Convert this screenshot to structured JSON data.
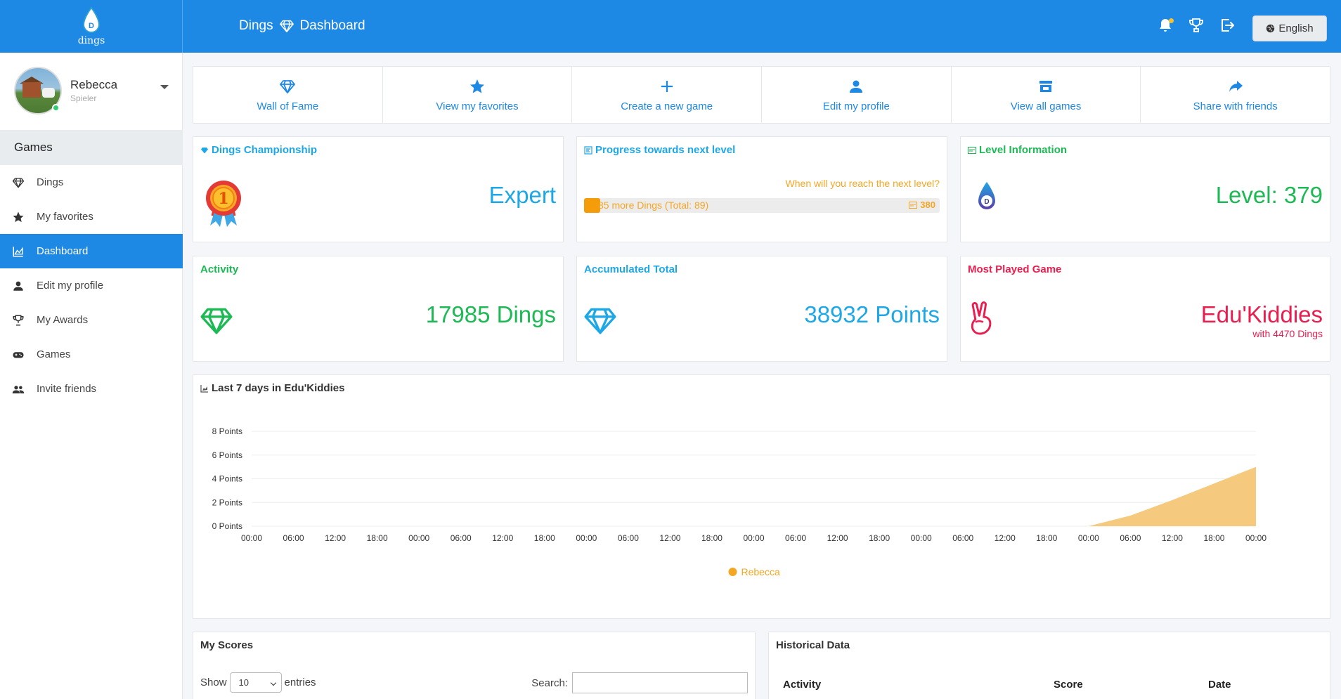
{
  "app": {
    "brand": "dings",
    "brand_letter": "D",
    "breadcrumb": [
      "Dings",
      "Dashboard"
    ],
    "language_label": "English"
  },
  "colors": {
    "primary": "#1e88e5",
    "expert_blue": "#1ea7e6",
    "green": "#1db954",
    "red": "#e91e4f",
    "orange": "#f5a623"
  },
  "user": {
    "name": "Rebecca",
    "role": "Spieler"
  },
  "sidebar": {
    "header": "Games",
    "items": [
      {
        "label": "Dings",
        "icon": "diamond-icon",
        "active": false
      },
      {
        "label": "My favorites",
        "icon": "star-icon",
        "active": false
      },
      {
        "label": "Dashboard",
        "icon": "chart-area-icon",
        "active": true
      },
      {
        "label": "Edit my profile",
        "icon": "user-icon",
        "active": false
      },
      {
        "label": "My Awards",
        "icon": "trophy-icon",
        "active": false
      },
      {
        "label": "Games",
        "icon": "gamepad-icon",
        "active": false
      },
      {
        "label": "Invite friends",
        "icon": "users-icon",
        "active": false
      }
    ]
  },
  "quick_actions": [
    {
      "label": "Wall of Fame",
      "icon": "diamond-icon"
    },
    {
      "label": "View my favorites",
      "icon": "star-icon"
    },
    {
      "label": "Create a new game",
      "icon": "plus-icon"
    },
    {
      "label": "Edit my profile",
      "icon": "user-icon"
    },
    {
      "label": "View all games",
      "icon": "store-icon"
    },
    {
      "label": "Share with friends",
      "icon": "share-icon"
    }
  ],
  "cards": {
    "championship": {
      "title": "Dings Championship",
      "value": "Expert",
      "medal_number": "1"
    },
    "progress": {
      "title": "Progress towards next level",
      "question": "When will you reach the next level?",
      "label": "85 more Dings (Total: 89)",
      "next_level": "380",
      "fraction": 0.045
    },
    "level": {
      "title": "Level Information",
      "value": "Level: 379"
    },
    "activity": {
      "title": "Activity",
      "value": "17985 Dings"
    },
    "accumulated": {
      "title": "Accumulated Total",
      "value": "38932 Points"
    },
    "most_played": {
      "title": "Most Played Game",
      "value": "Edu'Kiddies",
      "subtitle": "with 4470 Dings"
    }
  },
  "chart_data": {
    "type": "area",
    "title": "Last 7 days in Edu'Kiddies",
    "x": [
      "00:00",
      "06:00",
      "12:00",
      "18:00",
      "00:00",
      "06:00",
      "12:00",
      "18:00",
      "00:00",
      "06:00",
      "12:00",
      "18:00",
      "00:00",
      "06:00",
      "12:00",
      "18:00",
      "00:00",
      "06:00",
      "12:00",
      "18:00",
      "00:00",
      "06:00",
      "12:00",
      "18:00",
      "00:00"
    ],
    "series": [
      {
        "name": "Rebecca",
        "color": "#f5c97e",
        "values": [
          0,
          0,
          0,
          0,
          0,
          0,
          0,
          0,
          0,
          0,
          0,
          0,
          0,
          0,
          0,
          0,
          0,
          0,
          0,
          0,
          0,
          0.9,
          2.2,
          3.6,
          5
        ]
      }
    ],
    "y_ticks": [
      "0 Points",
      "2 Points",
      "4 Points",
      "6 Points",
      "8 Points"
    ],
    "ylim": [
      0,
      8
    ],
    "grid": true,
    "legend_position": "bottom-center"
  },
  "scores": {
    "title": "My Scores",
    "show_label": "Show",
    "entries_value": "10",
    "entries_label": "entries",
    "search_label": "Search:"
  },
  "history": {
    "title": "Historical Data",
    "columns": [
      "Activity",
      "Score",
      "Date"
    ]
  }
}
